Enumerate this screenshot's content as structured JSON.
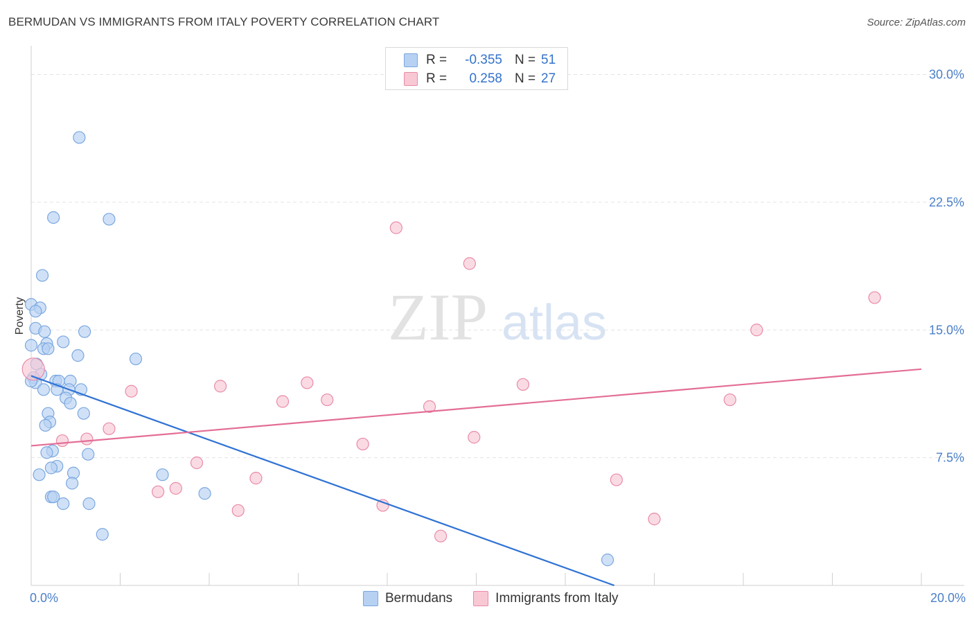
{
  "header": {
    "title": "BERMUDAN VS IMMIGRANTS FROM ITALY POVERTY CORRELATION CHART",
    "source": "Source: ZipAtlas.com"
  },
  "watermark": {
    "zip": "ZIP",
    "atlas": "atlas"
  },
  "legend": {
    "rows": [
      {
        "r_label": "R =",
        "r_value": "-0.355",
        "n_label": "N =",
        "n_value": "51"
      },
      {
        "r_label": "R =",
        "r_value": "0.258",
        "n_label": "N =",
        "n_value": "27"
      }
    ]
  },
  "bottom_legend": {
    "items": [
      {
        "label": "Bermudans"
      },
      {
        "label": "Immigrants from Italy"
      }
    ]
  },
  "colors": {
    "blue_fill": "#b7d1f3",
    "blue_stroke": "#7aa7df",
    "blue_line": "#2f72d4",
    "pink_fill": "#f8c8d5",
    "pink_stroke": "#e98aa7",
    "pink_line": "#e36d96",
    "grid": "#e3e3e3",
    "tick_text": "#4a7fc8"
  },
  "chart_data": {
    "type": "scatter",
    "title": "BERMUDAN VS IMMIGRANTS FROM ITALY POVERTY CORRELATION CHART",
    "xlabel": "",
    "ylabel": "Poverty",
    "xlim": [
      0,
      20
    ],
    "ylim": [
      0,
      31.2
    ],
    "x_tick_labels": [
      {
        "value": 0,
        "label": "0.0%"
      },
      {
        "value": 20,
        "label": "20.0%"
      }
    ],
    "y_tick_labels": [
      {
        "value": 7.5,
        "label": "7.5%"
      },
      {
        "value": 15,
        "label": "15.0%"
      },
      {
        "value": 22.5,
        "label": "22.5%"
      },
      {
        "value": 30,
        "label": "30.0%"
      }
    ],
    "series": [
      {
        "name": "Bermudans",
        "color": "#b7d1f3",
        "R": -0.355,
        "N": 51,
        "trend": {
          "x": [
            0,
            13.1
          ],
          "y": [
            12.3,
            0
          ]
        },
        "points": [
          [
            1.08,
            26.3
          ],
          [
            0.5,
            21.6
          ],
          [
            1.75,
            21.5
          ],
          [
            0.25,
            18.2
          ],
          [
            0.0,
            16.5
          ],
          [
            0.2,
            16.3
          ],
          [
            0.1,
            16.1
          ],
          [
            0.1,
            15.1
          ],
          [
            0.3,
            14.9
          ],
          [
            1.2,
            14.9
          ],
          [
            0.72,
            14.3
          ],
          [
            0.35,
            14.2
          ],
          [
            0.0,
            14.1
          ],
          [
            0.28,
            13.9
          ],
          [
            0.38,
            13.9
          ],
          [
            1.05,
            13.5
          ],
          [
            2.35,
            13.3
          ],
          [
            0.12,
            13.0
          ],
          [
            0.22,
            12.4
          ],
          [
            0.05,
            12.2
          ],
          [
            0.1,
            11.9
          ],
          [
            0.55,
            12.0
          ],
          [
            0.62,
            12.0
          ],
          [
            0.88,
            12.0
          ],
          [
            0.28,
            11.5
          ],
          [
            0.58,
            11.5
          ],
          [
            0.85,
            11.5
          ],
          [
            1.12,
            11.5
          ],
          [
            0.78,
            11.0
          ],
          [
            0.88,
            10.7
          ],
          [
            0.38,
            10.1
          ],
          [
            1.18,
            10.1
          ],
          [
            0.42,
            9.6
          ],
          [
            0.32,
            9.4
          ],
          [
            0.48,
            7.9
          ],
          [
            0.35,
            7.8
          ],
          [
            1.28,
            7.7
          ],
          [
            0.58,
            7.0
          ],
          [
            0.45,
            6.9
          ],
          [
            0.18,
            6.5
          ],
          [
            0.95,
            6.6
          ],
          [
            2.95,
            6.5
          ],
          [
            0.92,
            6.0
          ],
          [
            3.9,
            5.4
          ],
          [
            0.45,
            5.2
          ],
          [
            0.5,
            5.2
          ],
          [
            0.72,
            4.8
          ],
          [
            1.3,
            4.8
          ],
          [
            1.6,
            3.0
          ],
          [
            12.95,
            1.5
          ],
          [
            0.0,
            12.0
          ]
        ]
      },
      {
        "name": "Immigrants from Italy",
        "color": "#f8c8d5",
        "R": 0.258,
        "N": 27,
        "trend": {
          "x": [
            0,
            20
          ],
          "y": [
            8.2,
            12.7
          ]
        },
        "points": [
          [
            0.05,
            12.7
          ],
          [
            8.2,
            21.0
          ],
          [
            9.85,
            18.9
          ],
          [
            18.95,
            16.9
          ],
          [
            16.3,
            15.0
          ],
          [
            2.25,
            11.4
          ],
          [
            4.25,
            11.7
          ],
          [
            6.2,
            11.9
          ],
          [
            11.05,
            11.8
          ],
          [
            5.65,
            10.8
          ],
          [
            6.65,
            10.9
          ],
          [
            8.95,
            10.5
          ],
          [
            15.7,
            10.9
          ],
          [
            1.75,
            9.2
          ],
          [
            0.7,
            8.5
          ],
          [
            1.25,
            8.6
          ],
          [
            9.95,
            8.7
          ],
          [
            7.45,
            8.3
          ],
          [
            3.72,
            7.2
          ],
          [
            5.05,
            6.3
          ],
          [
            3.25,
            5.7
          ],
          [
            2.85,
            5.5
          ],
          [
            13.15,
            6.2
          ],
          [
            4.65,
            4.4
          ],
          [
            7.9,
            4.7
          ],
          [
            9.2,
            2.9
          ],
          [
            14.0,
            3.9
          ]
        ]
      }
    ]
  }
}
